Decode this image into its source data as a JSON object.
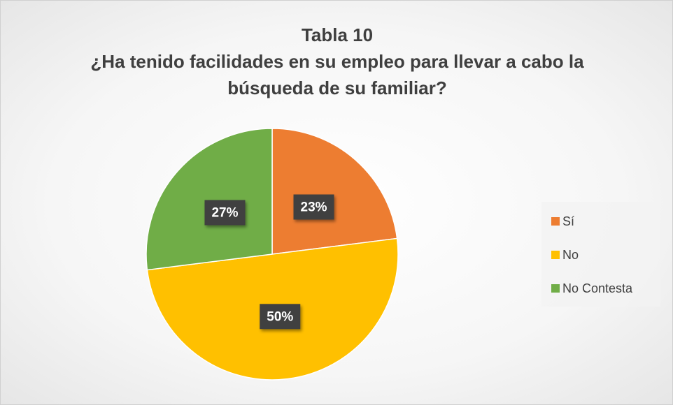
{
  "chart_data": {
    "type": "pie",
    "title": "Tabla 10",
    "subtitle": "¿Ha tenido facilidades en su empleo para llevar a cabo la búsqueda de su familiar?",
    "categories": [
      "Sí",
      "No",
      "No Contesta"
    ],
    "values": [
      23,
      50,
      27
    ],
    "value_labels": [
      "23%",
      "50%",
      "27%"
    ],
    "colors": [
      "#ED7D31",
      "#FFC000",
      "#70AD47"
    ],
    "legend": "right"
  }
}
